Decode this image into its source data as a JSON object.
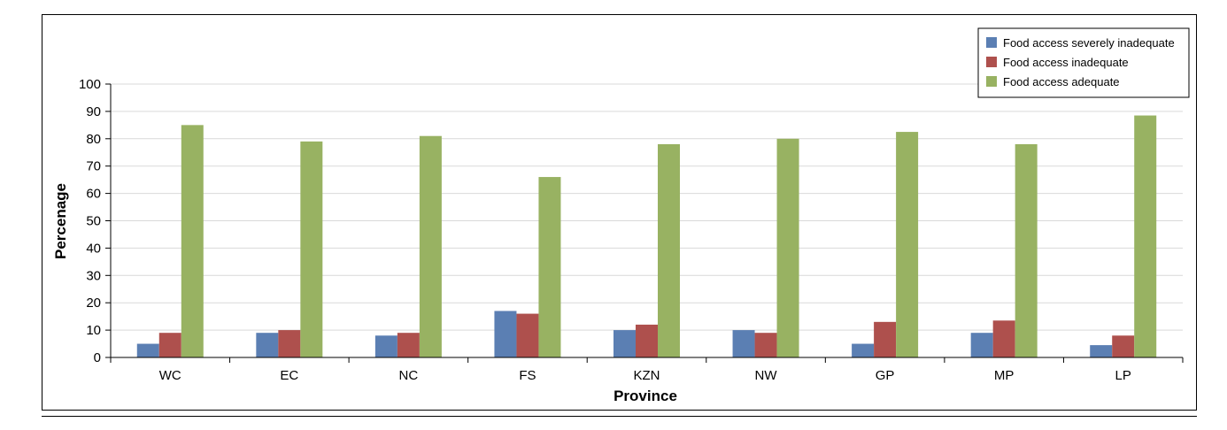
{
  "chart_data": {
    "type": "bar",
    "title": "",
    "xlabel": "Province",
    "ylabel": "Percenage",
    "ylim": [
      0,
      100
    ],
    "yticks": [
      0,
      10,
      20,
      30,
      40,
      50,
      60,
      70,
      80,
      90,
      100
    ],
    "grid": true,
    "legend_position": "top-right",
    "categories": [
      "WC",
      "EC",
      "NC",
      "FS",
      "KZN",
      "NW",
      "GP",
      "MP",
      "LP"
    ],
    "series": [
      {
        "name": "Food access severely inadequate",
        "color": "#5B7FB3",
        "values": [
          5,
          9,
          8,
          17,
          10,
          10,
          5,
          9,
          4.5
        ]
      },
      {
        "name": "Food access inadequate",
        "color": "#AE504D",
        "values": [
          9,
          10,
          9,
          16,
          12,
          9,
          13,
          13.5,
          8
        ]
      },
      {
        "name": "Food access adequate",
        "color": "#98B262",
        "values": [
          85,
          79,
          81,
          66,
          78,
          80,
          82.5,
          78,
          88.5
        ]
      }
    ]
  }
}
